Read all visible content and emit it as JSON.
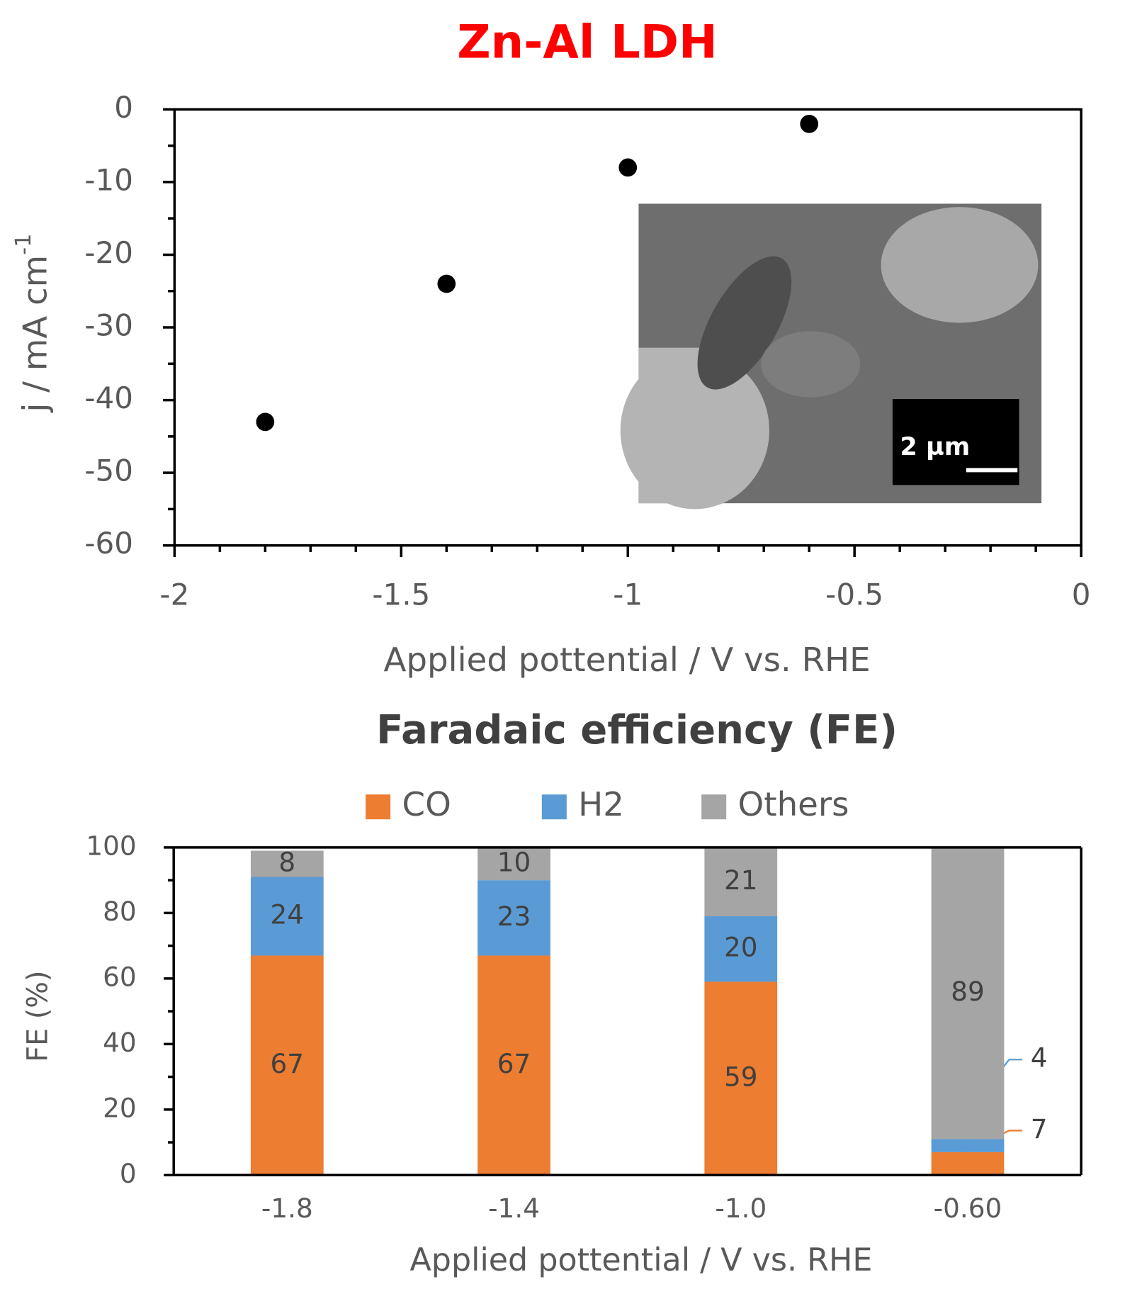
{
  "chart_data": [
    {
      "type": "scatter",
      "title": "Zn-Al LDH",
      "x": [
        -1.8,
        -1.4,
        -1.0,
        -0.6
      ],
      "values": [
        -43,
        -24,
        -8,
        -2
      ],
      "color": "#000000",
      "xlim": [
        -2,
        0
      ],
      "xticks": [
        -2,
        -1.5,
        -1,
        -0.5,
        0
      ],
      "xminorticks": [
        -1.9,
        -1.8,
        -1.7,
        -1.6,
        -1.4,
        -1.3,
        -1.2,
        -1.1,
        -0.9,
        -0.8,
        -0.7,
        -0.6,
        -0.4,
        -0.3,
        -0.2,
        -0.1
      ],
      "ylim": [
        -60,
        0
      ],
      "yticks": [
        -60,
        -50,
        -40,
        -30,
        -20,
        -10,
        0
      ],
      "yminorticks": [
        -55,
        -45,
        -35,
        -25,
        -15,
        -5
      ],
      "xlabel": "Applied pottential / V vs. RHE",
      "ylabel": "j / mA cm",
      "ylabel_superscript": "-1",
      "inset_label": "2 µm"
    },
    {
      "type": "stacked-bar",
      "title": "Faradaic efficiency (FE)",
      "categories": [
        "-1.8",
        "-1.4",
        "-1.0",
        "-0.60"
      ],
      "series": [
        {
          "name": "CO",
          "color": "#ed7d31",
          "values": [
            67,
            67,
            59,
            7
          ]
        },
        {
          "name": "H2",
          "color": "#5b9bd5",
          "values": [
            24,
            23,
            20,
            4
          ]
        },
        {
          "name": "Others",
          "color": "#a5a5a5",
          "values": [
            8,
            10,
            21,
            89
          ]
        }
      ],
      "ylim": [
        0,
        100
      ],
      "yticks": [
        0,
        20,
        40,
        60,
        80,
        100
      ],
      "yminorticks": [
        10,
        30,
        50,
        70,
        90
      ],
      "xlabel": "Applied pottential / V vs. RHE",
      "ylabel": "FE  (%)",
      "legend": "top"
    }
  ]
}
